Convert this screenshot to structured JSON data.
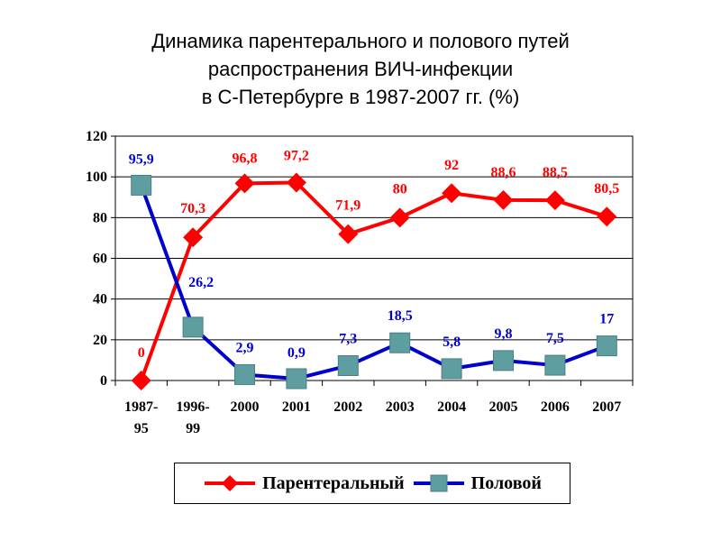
{
  "title_lines": [
    "Динамика парентерального и полового путей",
    "распространения ВИЧ-инфекции",
    "в С-Петербурге в 1987-2007 гг. (%)"
  ],
  "colors": {
    "parenteral": "#ff0000",
    "sexual": "#0000cc",
    "sexual_marker": "#5f9ea0"
  },
  "chart_data": {
    "type": "line",
    "title": "Динамика парентерального и полового путей распространения ВИЧ-инфекции в С-Петербурге в 1987-2007 гг. (%)",
    "categories": [
      [
        "1987-",
        "95"
      ],
      [
        "1996-",
        "99"
      ],
      [
        "2000"
      ],
      [
        "2001"
      ],
      [
        "2002"
      ],
      [
        "2003"
      ],
      [
        "2004"
      ],
      [
        "2005"
      ],
      [
        "2006"
      ],
      [
        "2007"
      ]
    ],
    "ylim": [
      0,
      120
    ],
    "yticks": [
      0,
      20,
      40,
      60,
      80,
      100,
      120
    ],
    "grid": true,
    "legend_position": "bottom",
    "series": [
      {
        "name": "Парентеральный",
        "values": [
          0,
          70.3,
          96.8,
          97.2,
          71.9,
          80,
          92,
          88.6,
          88.5,
          80.5
        ],
        "labels": [
          "0",
          "70,3",
          "96,8",
          "97,2",
          "71,9",
          "80",
          "92",
          "88,6",
          "88,5",
          "80,5"
        ],
        "marker": "diamond"
      },
      {
        "name": "Половой",
        "values": [
          95.9,
          26.2,
          2.9,
          0.9,
          7.3,
          18.5,
          5.8,
          9.8,
          7.5,
          17
        ],
        "labels": [
          "95,9",
          "26,2",
          "2,9",
          "0,9",
          "7,3",
          "18,5",
          "5,8",
          "9,8",
          "7,5",
          "17"
        ],
        "marker": "square"
      }
    ]
  }
}
